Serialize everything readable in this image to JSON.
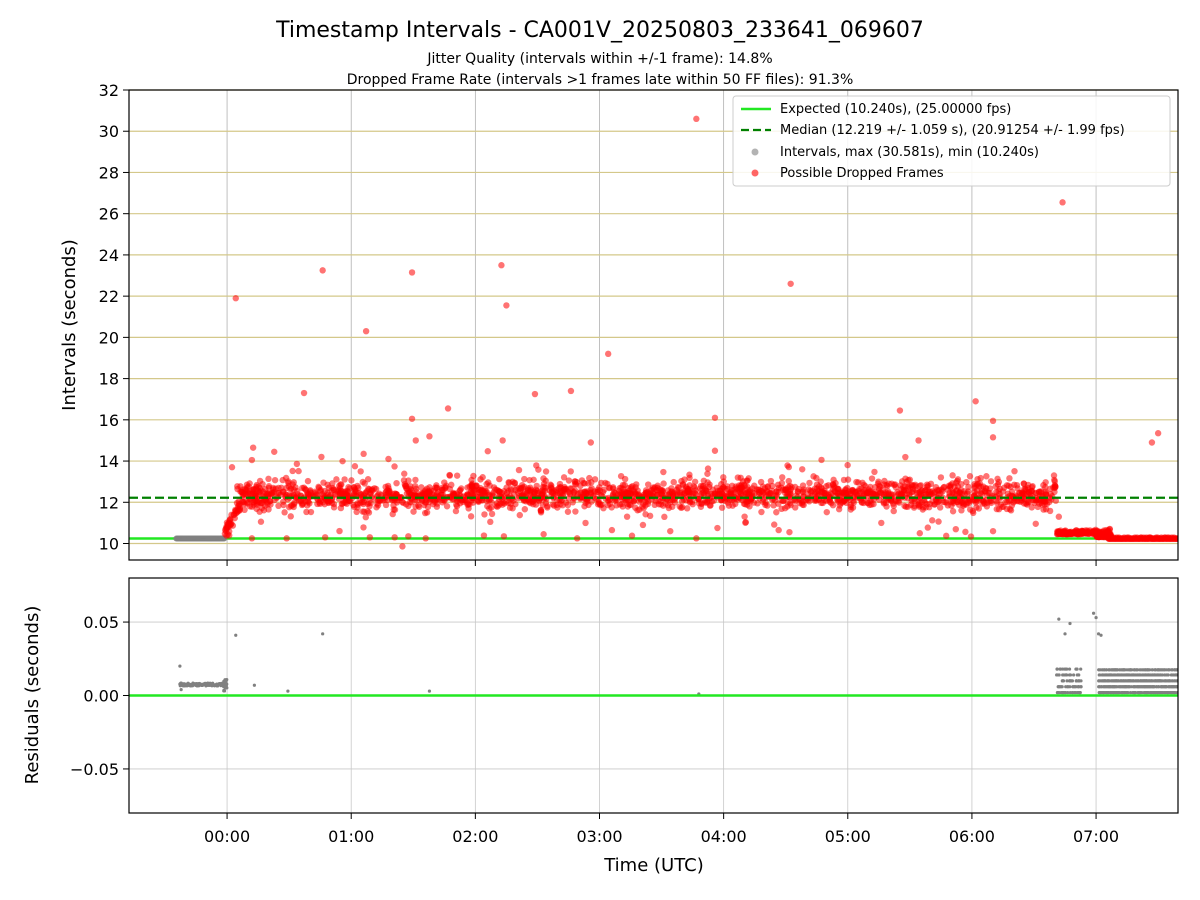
{
  "chart_data": [
    {
      "type": "scatter",
      "title": "Timestamp Intervals - CA001V_20250803_233641_069607",
      "subtitle_lines": [
        "Jitter Quality (intervals within +/-1 frame): 14.8%",
        "Dropped Frame Rate (intervals >1 frames late within 50 FF files): 91.3%"
      ],
      "xlabel": "",
      "ylabel": "Intervals (seconds)",
      "ylim": [
        9.2,
        32
      ],
      "yticks": [
        10,
        12,
        14,
        16,
        18,
        20,
        22,
        24,
        26,
        28,
        30,
        32
      ],
      "xlim_hours": [
        -0.79,
        7.66
      ],
      "xticks": [
        {
          "value": 0,
          "label": "00:00"
        },
        {
          "value": 1,
          "label": "01:00"
        },
        {
          "value": 2,
          "label": "02:00"
        },
        {
          "value": 3,
          "label": "03:00"
        },
        {
          "value": 4,
          "label": "04:00"
        },
        {
          "value": 5,
          "label": "05:00"
        },
        {
          "value": 6,
          "label": "06:00"
        },
        {
          "value": 7,
          "label": "07:00"
        }
      ],
      "grid": true,
      "legend_position": "top-right",
      "reference_lines": [
        {
          "name": "Expected (10.240s), (25.00000 fps)",
          "y": 10.24,
          "color": "#22e822",
          "style": "solid"
        },
        {
          "name": "Median (12.219 +/- 1.059 s), (20.91254 +/- 1.99 fps)",
          "y": 12.219,
          "color": "#008000",
          "style": "dashed"
        }
      ],
      "series": [
        {
          "name": "Intervals, max (30.581s), min (10.240s)",
          "color": "#808080",
          "points": [
            [
              -0.4,
              10.24
            ],
            [
              -0.3,
              10.24
            ],
            [
              -0.2,
              10.24
            ],
            [
              -0.1,
              10.24
            ],
            [
              -0.02,
              10.24
            ],
            [
              6.8,
              10.24
            ],
            [
              7.2,
              10.24
            ],
            [
              7.6,
              10.24
            ]
          ]
        },
        {
          "name": "Possible Dropped Frames",
          "color": "#ff0000",
          "points": [
            [
              0.07,
              21.9
            ],
            [
              0.62,
              17.3
            ],
            [
              0.77,
              23.25
            ],
            [
              1.12,
              20.3
            ],
            [
              1.49,
              23.15
            ],
            [
              1.49,
              16.05
            ],
            [
              1.52,
              15.0
            ],
            [
              1.63,
              15.2
            ],
            [
              1.78,
              16.55
            ],
            [
              2.21,
              23.5
            ],
            [
              2.25,
              21.55
            ],
            [
              2.22,
              15.0
            ],
            [
              2.48,
              17.25
            ],
            [
              2.77,
              17.4
            ],
            [
              2.93,
              14.9
            ],
            [
              3.07,
              19.2
            ],
            [
              3.78,
              30.6
            ],
            [
              3.93,
              16.1
            ],
            [
              3.93,
              14.5
            ],
            [
              4.54,
              22.6
            ],
            [
              5.42,
              16.45
            ],
            [
              5.57,
              15.0
            ],
            [
              6.03,
              16.9
            ],
            [
              6.17,
              15.95
            ],
            [
              6.17,
              15.15
            ],
            [
              6.73,
              26.55
            ],
            [
              7.45,
              14.9
            ],
            [
              7.5,
              15.35
            ],
            [
              0.04,
              13.7
            ],
            [
              0.21,
              14.65
            ],
            [
              0.2,
              14.05
            ],
            [
              0.38,
              14.45
            ],
            [
              0.76,
              14.2
            ],
            [
              0.79,
              10.3
            ],
            [
              0.2,
              10.25
            ],
            [
              0.48,
              10.25
            ],
            [
              1.03,
              13.75
            ],
            [
              1.1,
              14.35
            ],
            [
              1.15,
              10.3
            ],
            [
              1.3,
              14.1
            ],
            [
              1.35,
              10.3
            ],
            [
              1.6,
              10.25
            ],
            [
              1.46,
              10.35
            ],
            [
              2.23,
              10.35
            ],
            [
              2.55,
              10.45
            ],
            [
              2.82,
              10.25
            ],
            [
              3.1,
              10.65
            ],
            [
              3.35,
              10.9
            ],
            [
              3.78,
              10.25
            ],
            [
              3.57,
              10.6
            ],
            [
              3.95,
              10.75
            ],
            [
              4.53,
              10.55
            ],
            [
              5.27,
              11.0
            ],
            [
              5.58,
              10.5
            ],
            [
              6.17,
              10.6
            ],
            [
              6.7,
              11.3
            ]
          ]
        }
      ]
    },
    {
      "type": "scatter",
      "title": "",
      "xlabel": "Time (UTC)",
      "ylabel": "Residuals (seconds)",
      "ylim": [
        -0.08,
        0.08
      ],
      "yticks": [
        {
          "value": -0.05,
          "label": "−0.05"
        },
        {
          "value": 0.0,
          "label": "0.00"
        },
        {
          "value": 0.05,
          "label": "0.05"
        }
      ],
      "xlim_hours": [
        -0.79,
        7.66
      ],
      "grid": true,
      "reference_lines": [
        {
          "y": 0.0,
          "color": "#22e822",
          "style": "solid"
        }
      ],
      "series": [
        {
          "color": "#808080",
          "points": [
            [
              -0.38,
              0.02
            ],
            [
              -0.37,
              0.004
            ],
            [
              0.07,
              0.041
            ],
            [
              0.22,
              0.007
            ],
            [
              0.49,
              0.003
            ],
            [
              0.77,
              0.042
            ],
            [
              1.63,
              0.003
            ],
            [
              3.8,
              0.001
            ],
            [
              6.7,
              0.052
            ],
            [
              6.75,
              0.042
            ],
            [
              6.79,
              0.049
            ],
            [
              6.98,
              0.056
            ],
            [
              7.0,
              0.053
            ],
            [
              7.02,
              0.042
            ],
            [
              7.04,
              0.041
            ]
          ]
        }
      ]
    }
  ]
}
